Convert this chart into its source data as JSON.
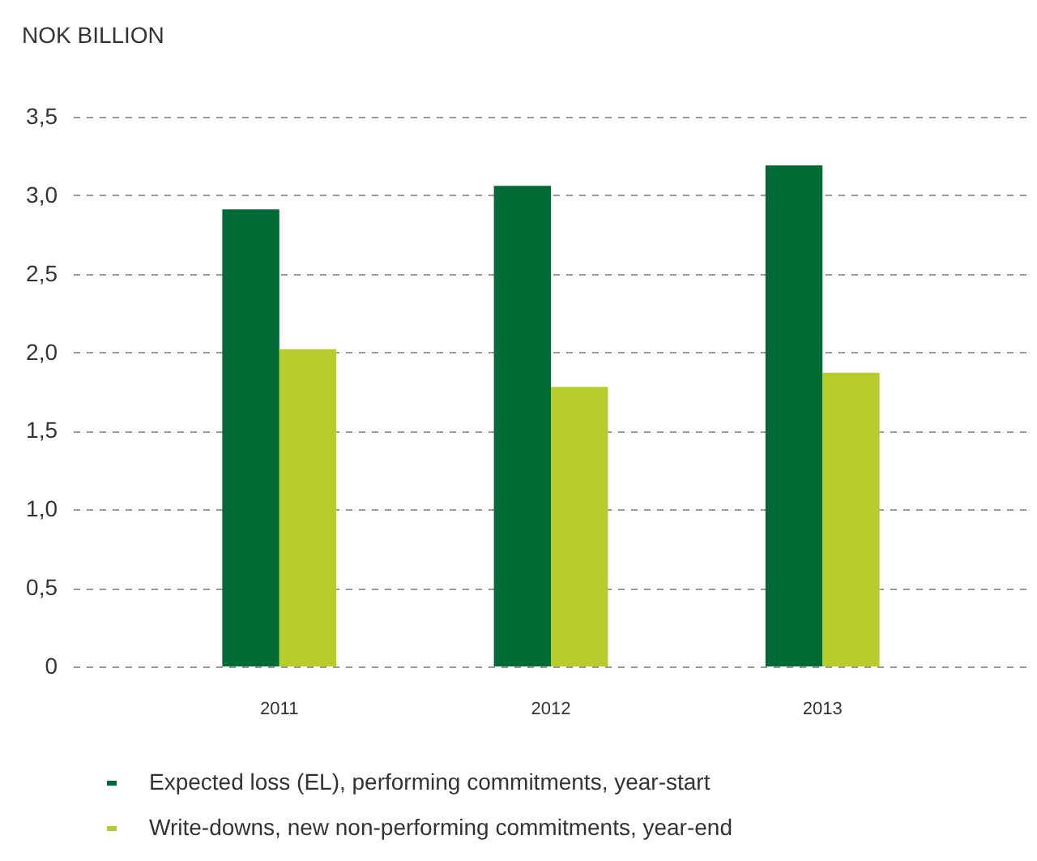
{
  "chart_data": {
    "type": "bar",
    "ylabel": "NOK BILLION",
    "categories": [
      "2011",
      "2012",
      "2013"
    ],
    "series": [
      {
        "name": "Expected loss (EL), performing commitments, year-start",
        "color": "#006b35",
        "values": [
          2.91,
          3.06,
          3.19
        ]
      },
      {
        "name": "Write-downs, new non-performing commitments, year-end",
        "color": "#b5cc2a",
        "values": [
          2.02,
          1.78,
          1.87
        ]
      }
    ],
    "ylim": [
      0,
      3.5
    ],
    "yticks": [
      {
        "value": 0,
        "label": "0"
      },
      {
        "value": 0.5,
        "label": "0,5"
      },
      {
        "value": 1,
        "label": "1,0"
      },
      {
        "value": 1.5,
        "label": "1,5"
      },
      {
        "value": 2,
        "label": "2,0"
      },
      {
        "value": 2.5,
        "label": "2,5"
      },
      {
        "value": 3,
        "label": "3,0"
      },
      {
        "value": 3.5,
        "label": "3,5"
      }
    ],
    "grid": "y",
    "legend": "bottom"
  }
}
